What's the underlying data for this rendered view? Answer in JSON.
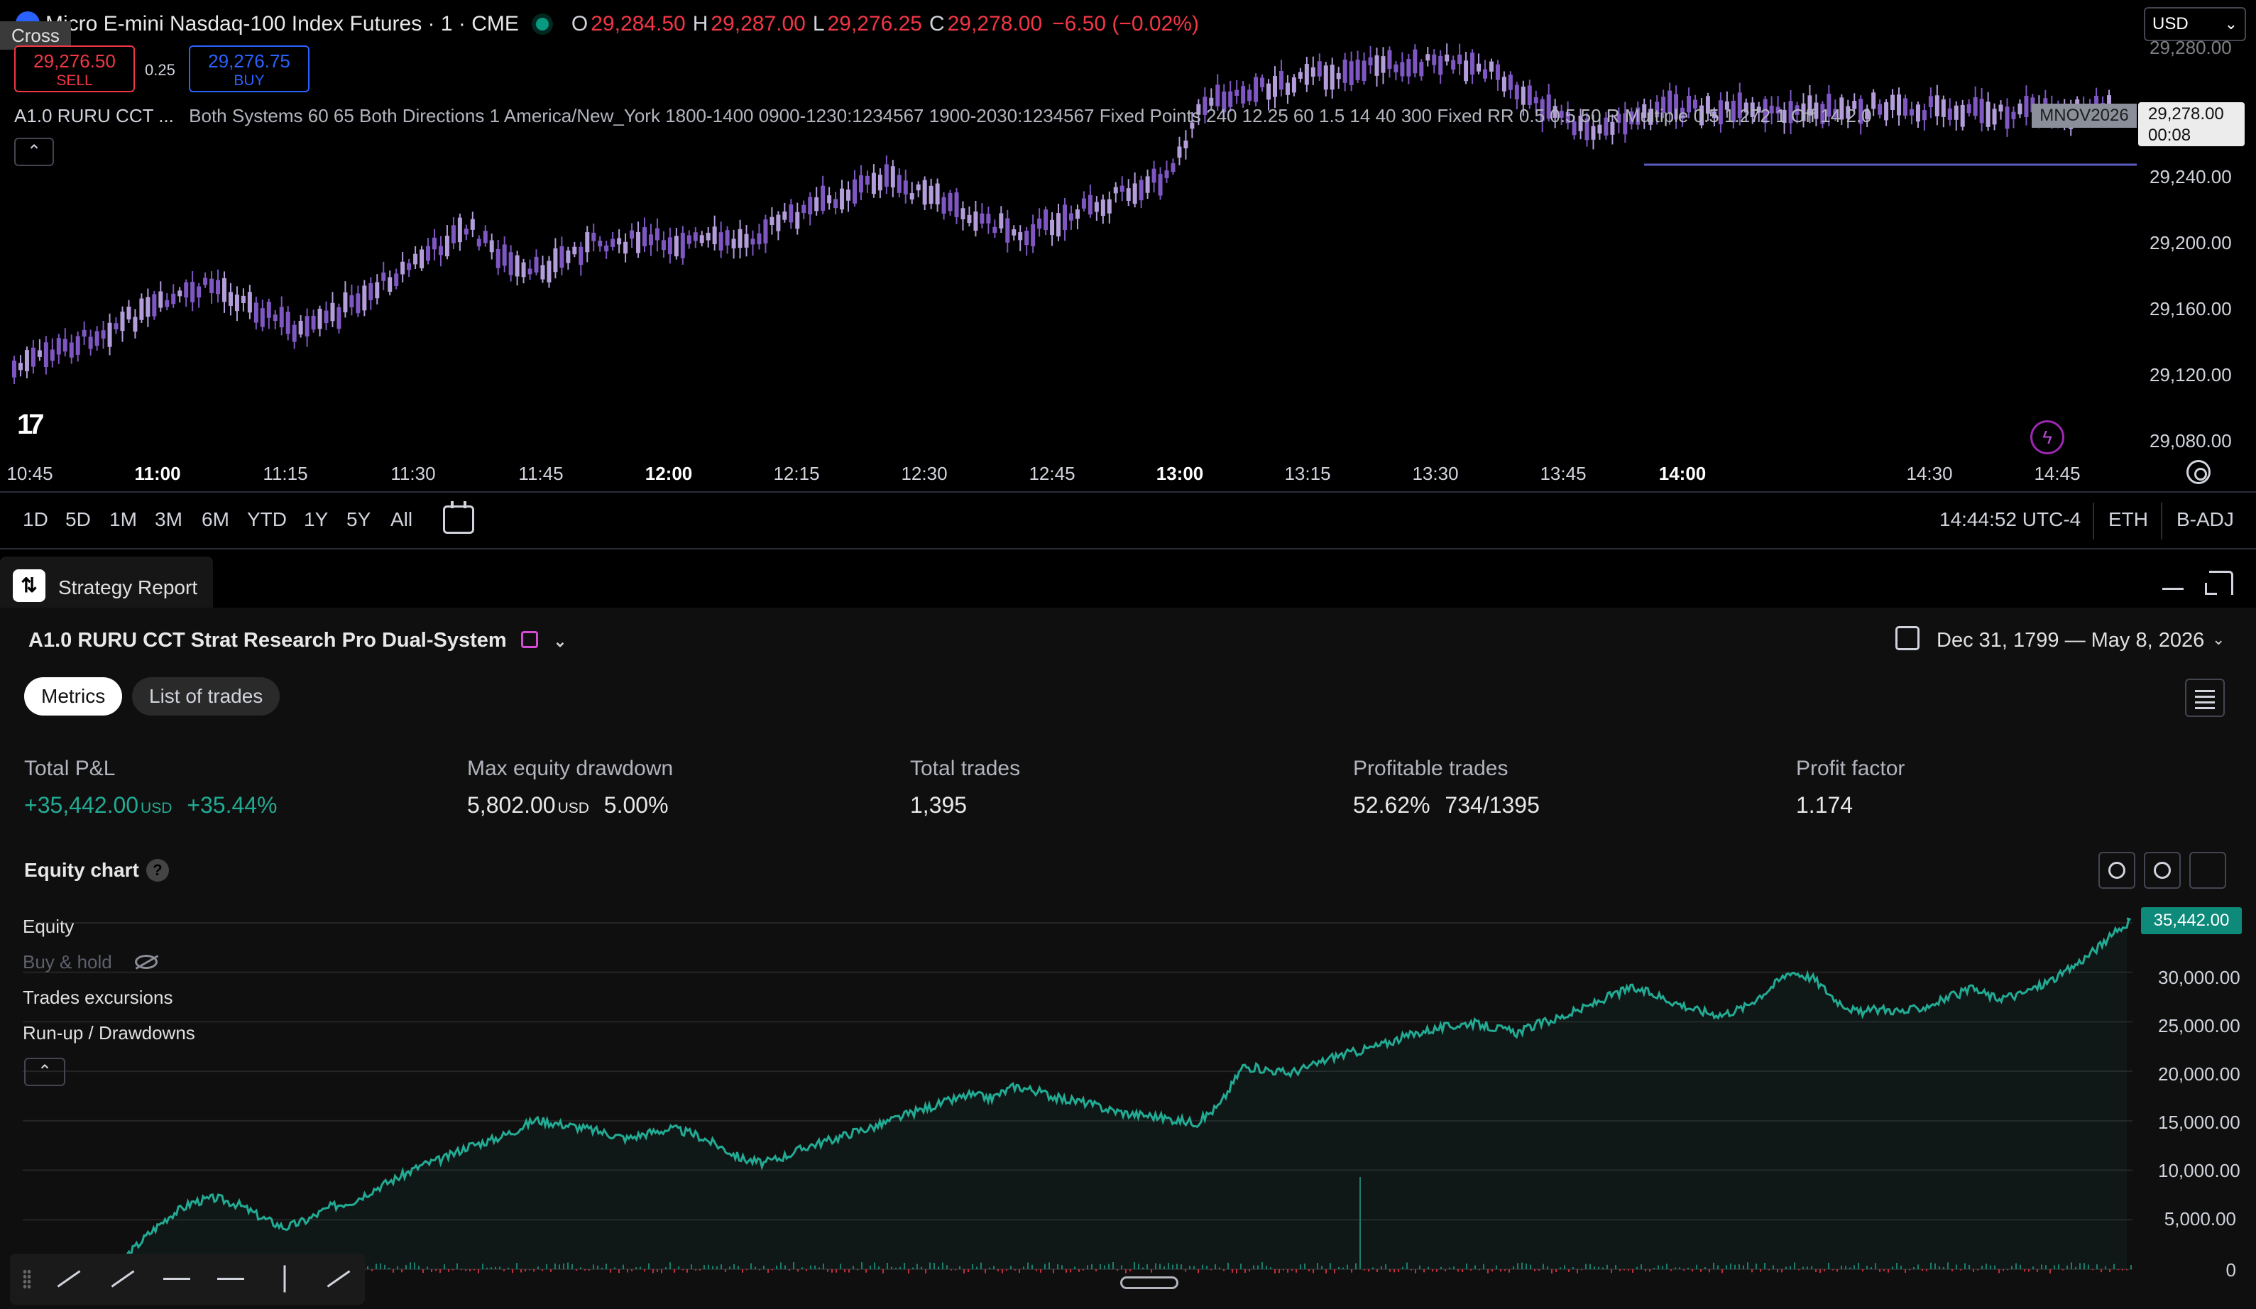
{
  "chart": {
    "symbol_title": "Micro E-mini Nasdaq-100 Index Futures · 1 · CME",
    "ohlc": {
      "o_label": "O",
      "o": "29,284.50",
      "h_label": "H",
      "h": "29,287.00",
      "l_label": "L",
      "l": "29,276.25",
      "c_label": "C",
      "c": "29,278.00",
      "change": "−6.50 (−0.02%)"
    },
    "cross_tooltip": "Cross",
    "sell": {
      "price": "29,276.50",
      "label": "SELL"
    },
    "buy": {
      "price": "29,276.75",
      "label": "BUY"
    },
    "spread": "0.25",
    "currency": "USD",
    "indicator": {
      "name": "A1.0 RURU CCT ...",
      "params": "Both Systems 60 65 Both Directions 1 America/New_York 1800-1400 0900-1230:1234567 1900-2030:1234567 Fixed Points 240 12.25 60 1.5 14 40 300 Fixed RR 0.5 0.5 50 R Multiple 0.5 1.272 1 Off 14 2.0"
    },
    "price_ticks": [
      "29,280.00",
      "29,240.00",
      "29,200.00",
      "29,160.00",
      "29,120.00",
      "29,080.00"
    ],
    "nov_tag": "MNOV2026",
    "last_price": "29,278.00",
    "countdown": "00:08",
    "time_ticks": [
      {
        "t": "10:45",
        "bold": false
      },
      {
        "t": "11:00",
        "bold": true
      },
      {
        "t": "11:15",
        "bold": false
      },
      {
        "t": "11:30",
        "bold": false
      },
      {
        "t": "11:45",
        "bold": false
      },
      {
        "t": "12:00",
        "bold": true
      },
      {
        "t": "12:15",
        "bold": false
      },
      {
        "t": "12:30",
        "bold": false
      },
      {
        "t": "12:45",
        "bold": false
      },
      {
        "t": "13:00",
        "bold": true
      },
      {
        "t": "13:15",
        "bold": false
      },
      {
        "t": "13:30",
        "bold": false
      },
      {
        "t": "13:45",
        "bold": false
      },
      {
        "t": "14:00",
        "bold": true
      },
      {
        "t": "14:30",
        "bold": false
      },
      {
        "t": "14:45",
        "bold": false
      }
    ],
    "logo": "17"
  },
  "range_bar": {
    "ranges": [
      "1D",
      "5D",
      "1M",
      "3M",
      "6M",
      "YTD",
      "1Y",
      "5Y",
      "All"
    ],
    "clock": "14:44:52 UTC-4",
    "session": "ETH",
    "adjust": "B-ADJ"
  },
  "report": {
    "tab_label": "Strategy Report",
    "strategy_name": "A1.0 RURU CCT Strat Research Pro Dual-System",
    "date_range": "Dec 31, 1799 — May 8, 2026",
    "tabs": [
      "Metrics",
      "List of trades"
    ],
    "metrics": [
      {
        "label": "Total P&L",
        "value": "+35,442.00",
        "unit": "USD",
        "extra": "+35.44%",
        "positive": true
      },
      {
        "label": "Max equity drawdown",
        "value": "5,802.00",
        "unit": "USD",
        "extra": "5.00%",
        "positive": false
      },
      {
        "label": "Total trades",
        "value": "1,395",
        "unit": "",
        "extra": "",
        "positive": false
      },
      {
        "label": "Profitable trades",
        "value": "52.62%",
        "unit": "",
        "extra": "734/1395",
        "positive": false
      },
      {
        "label": "Profit factor",
        "value": "1.174",
        "unit": "",
        "extra": "",
        "positive": false
      }
    ],
    "equity_title": "Equity chart",
    "help": "?",
    "legend": [
      "Equity",
      "Buy & hold",
      "Trades excursions",
      "Run-up / Drawdowns"
    ],
    "current_equity": "35,442.00",
    "colors": {
      "equity": "#22ab94",
      "candle_up": "#b39ddb",
      "candle_down": "#7e57c2"
    }
  },
  "chart_data": {
    "type": "area",
    "yticks": [
      "30,000.00",
      "25,000.00",
      "20,000.00",
      "15,000.00",
      "10,000.00",
      "5,000.00",
      "0"
    ],
    "ylim": [
      0,
      36000
    ],
    "x_count": 1395,
    "series": [
      {
        "name": "Equity",
        "values": [
          0,
          -400,
          1200,
          3500,
          5500,
          6800,
          7200,
          6500,
          5200,
          4200,
          5000,
          6300,
          6900,
          8200,
          9300,
          10500,
          11200,
          12400,
          13000,
          13900,
          15100,
          14700,
          14300,
          13800,
          13200,
          13800,
          14200,
          13600,
          12500,
          11200,
          10700,
          11500,
          12500,
          13100,
          13900,
          14500,
          15400,
          16200,
          16900,
          17600,
          17300,
          18500,
          18000,
          17200,
          16900,
          16200,
          15700,
          15500,
          15100,
          14800,
          16600,
          20500,
          20200,
          19800,
          20500,
          21500,
          22000,
          22600,
          23400,
          24100,
          24500,
          24900,
          24400,
          23900,
          24800,
          25500,
          26400,
          27500,
          28400,
          27800,
          26900,
          26100,
          25700,
          26500,
          28200,
          30100,
          29400,
          27200,
          25900,
          26300,
          26000,
          26600,
          27500,
          28300,
          27400,
          27700,
          28700,
          29900,
          31600,
          33500,
          35442
        ]
      }
    ]
  }
}
